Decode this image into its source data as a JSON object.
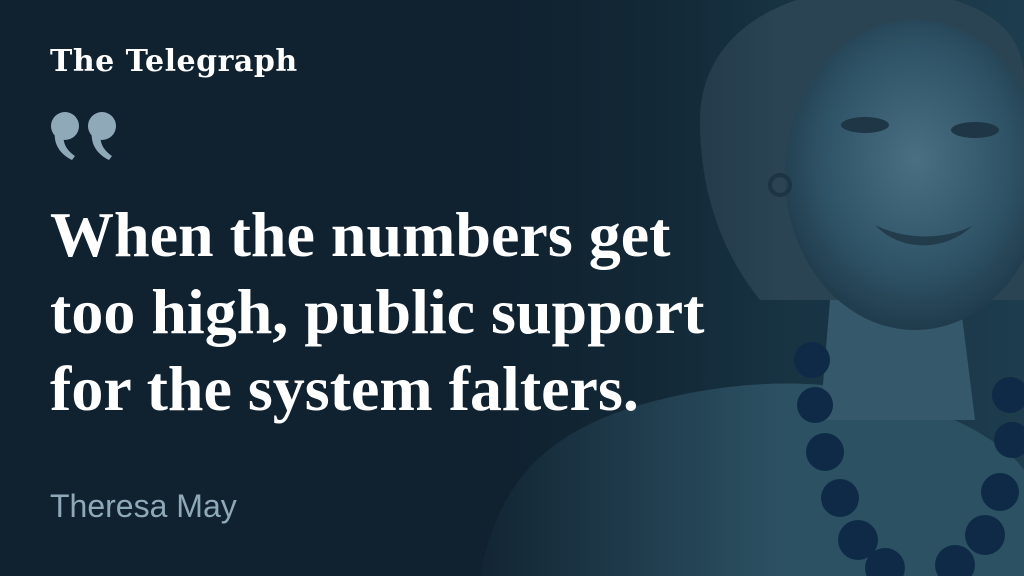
{
  "brand": {
    "name": "The Telegraph"
  },
  "quote": {
    "lines": [
      "When the numbers get",
      "too high, public support",
      "for the system falters."
    ]
  },
  "attribution": {
    "name": "Theresa May"
  },
  "icons": {
    "quote_mark": "quote-mark-icon"
  },
  "colors": {
    "background": "#0f1f2c",
    "quote_mark": "#8fa9b8",
    "text": "#ffffff",
    "attribution": "#8fa9b8"
  }
}
